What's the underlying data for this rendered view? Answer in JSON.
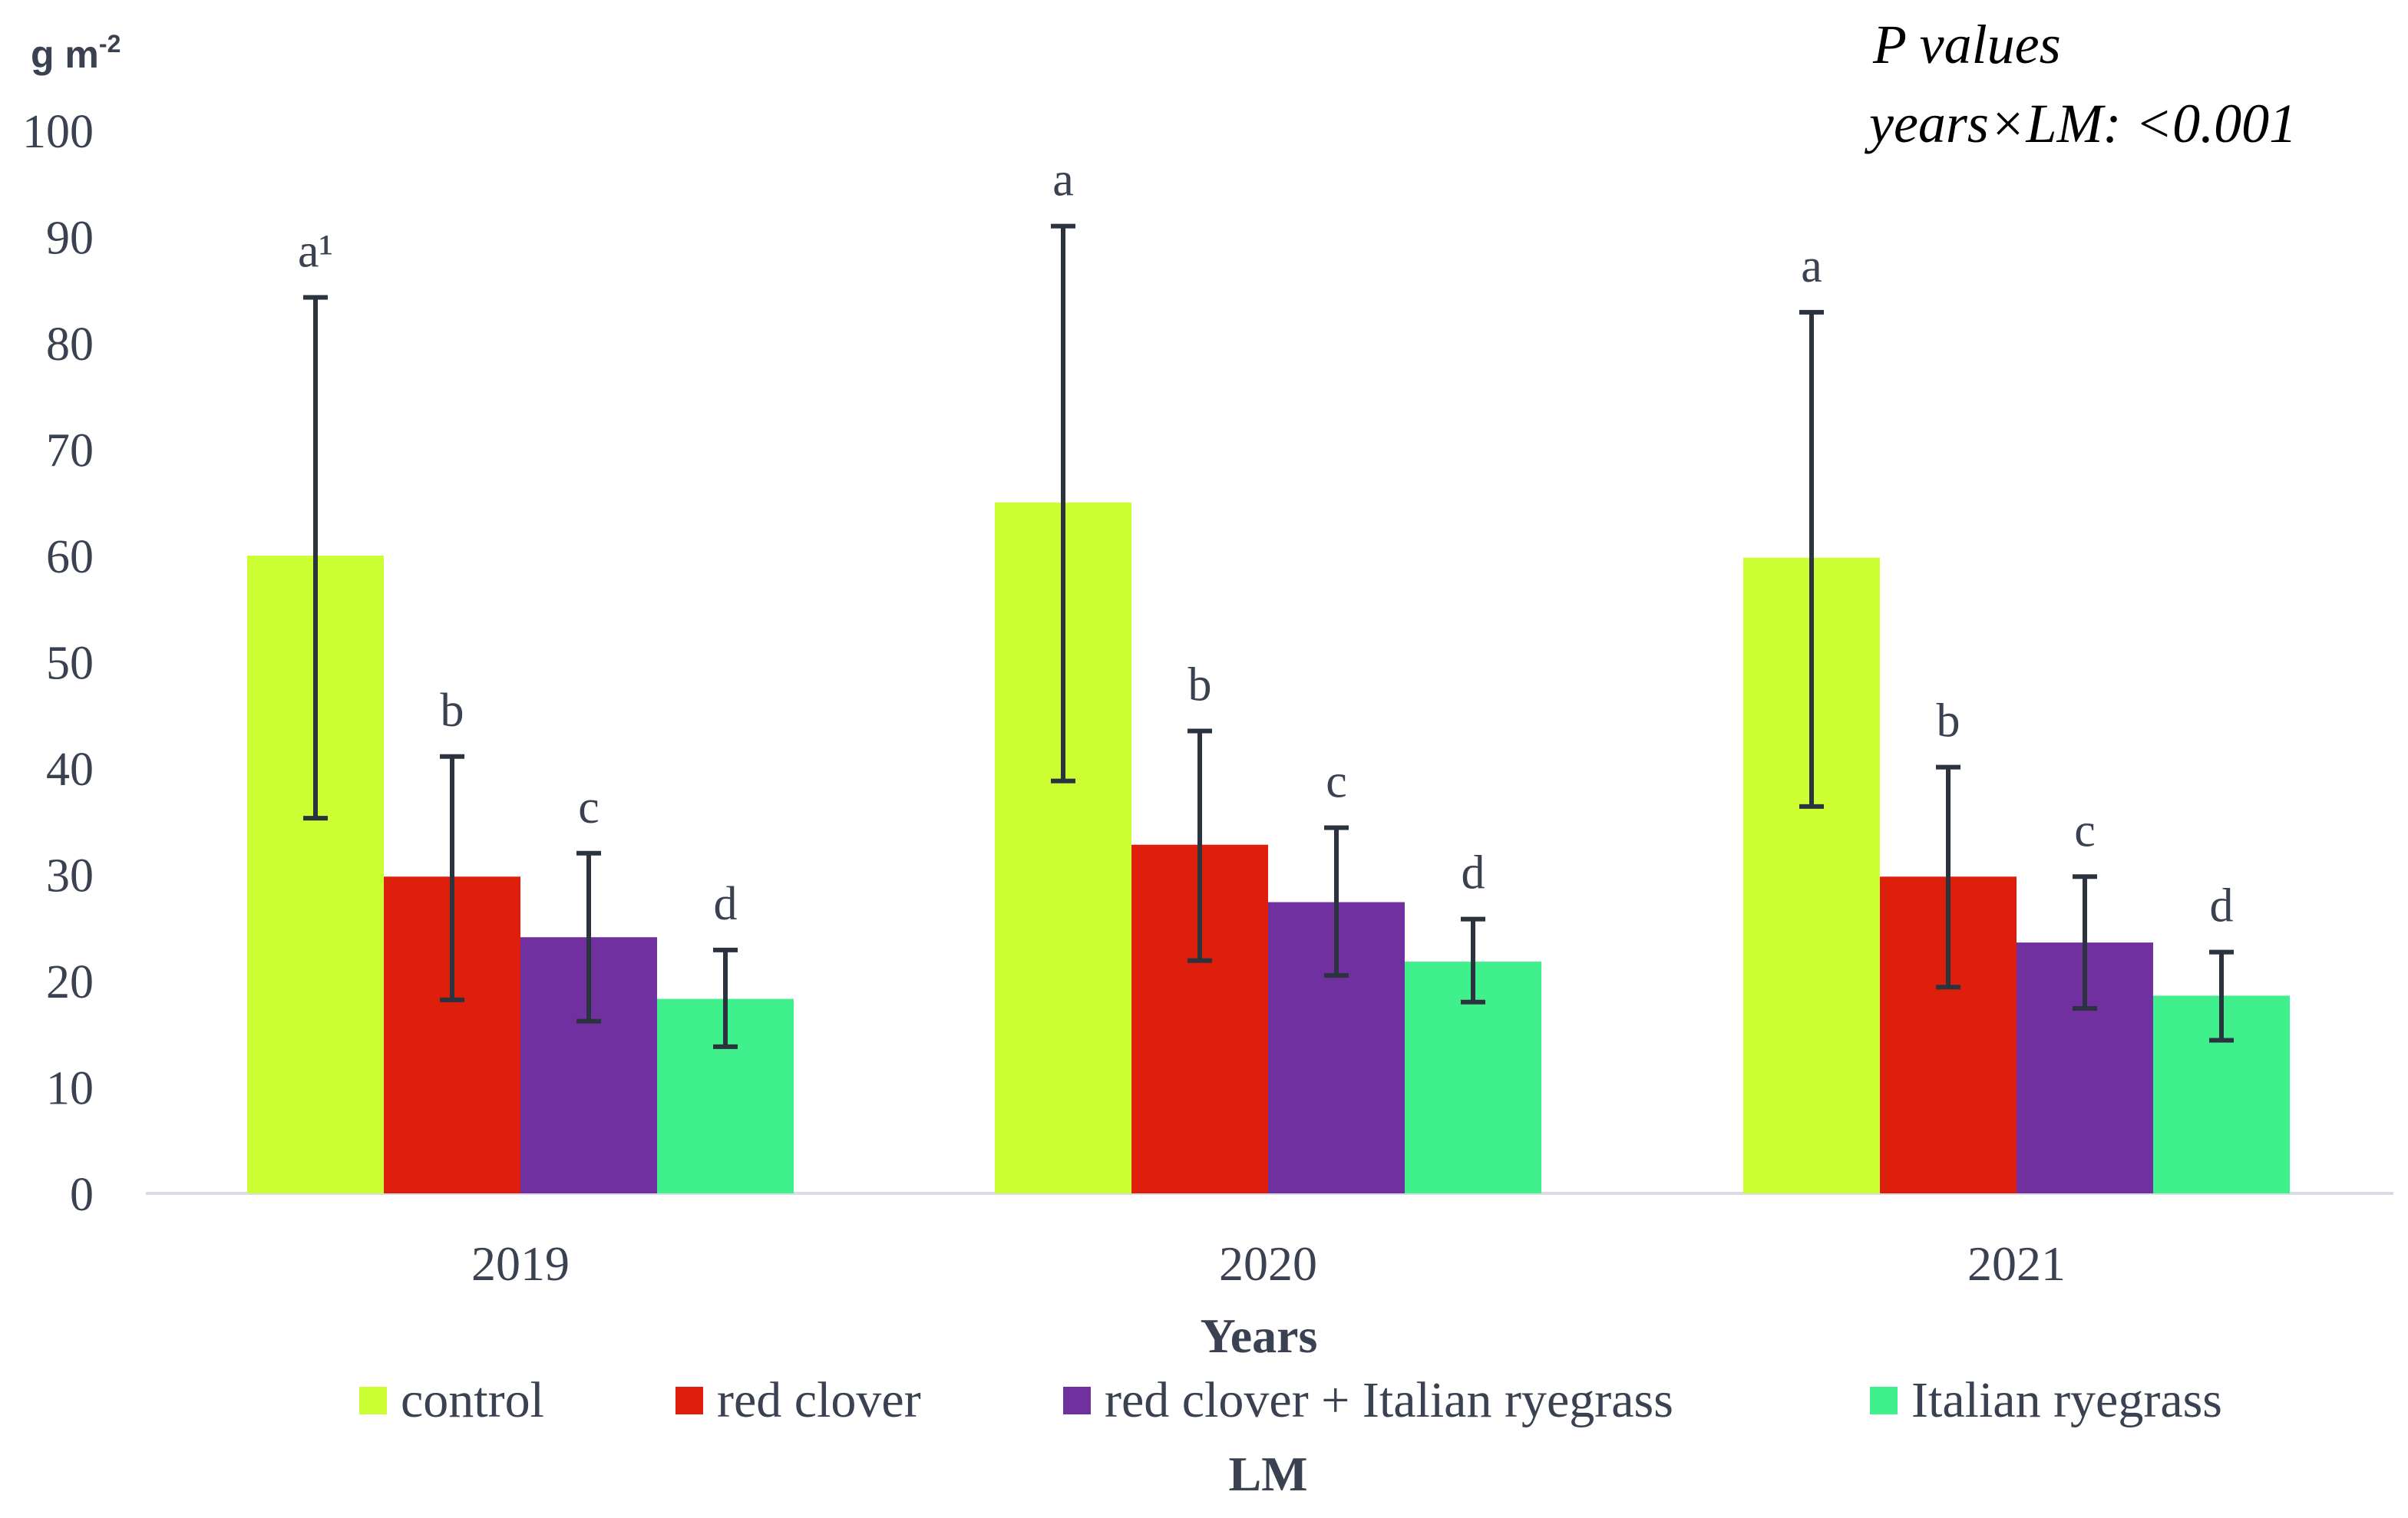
{
  "chart_data": {
    "type": "bar",
    "ylabel": "g m",
    "ylabel_sup": "-2",
    "xlabel": "Years",
    "legend_title": "LM",
    "annotation": {
      "line1": "P values",
      "line2": "years×LM: <0.001"
    },
    "ylim": [
      0,
      100
    ],
    "yticks": [
      0,
      10,
      20,
      30,
      40,
      50,
      60,
      70,
      80,
      90,
      100
    ],
    "categories": [
      "2019",
      "2020",
      "2021"
    ],
    "series": [
      {
        "name": "control",
        "color": "#ccff33",
        "values": [
          60,
          65,
          59.8
        ],
        "err_low": [
          35.3,
          38.8,
          36.4
        ],
        "err_high": [
          84.3,
          91,
          82.9
        ],
        "letters": [
          "a¹",
          "a",
          "a"
        ]
      },
      {
        "name": "red clover",
        "color": "#dd1f0b",
        "values": [
          29.8,
          32.8,
          29.8
        ],
        "err_low": [
          18.2,
          21.9,
          19.4
        ],
        "err_high": [
          41.1,
          43.5,
          40.1
        ],
        "letters": [
          "b",
          "b",
          "b"
        ]
      },
      {
        "name": "red clover + Italian ryegrass",
        "color": "#7030a0",
        "values": [
          24.1,
          27.4,
          23.6
        ],
        "err_low": [
          16.2,
          20.5,
          17.4
        ],
        "err_high": [
          32,
          34.4,
          29.8
        ],
        "letters": [
          "c",
          "c",
          "c"
        ]
      },
      {
        "name": "Italian ryegrass",
        "color": "#40f08c",
        "values": [
          18.3,
          21.8,
          18.6
        ],
        "err_low": [
          13.8,
          18,
          14.4
        ],
        "err_high": [
          22.9,
          25.8,
          22.7
        ],
        "letters": [
          "d",
          "d",
          "d"
        ]
      }
    ],
    "grid": false,
    "legend_position": "bottom"
  }
}
